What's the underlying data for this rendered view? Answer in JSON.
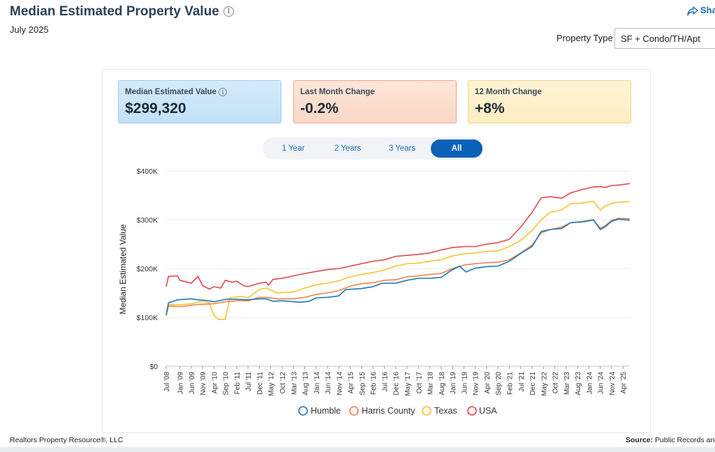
{
  "header": {
    "title": "Median Estimated Property Value",
    "subtitle": "July 2025",
    "share_label": "Sha",
    "property_type_label": "Property Type",
    "property_type_value": "SF + Condo/TH/Apt"
  },
  "cards": [
    {
      "label": "Median Estimated Value",
      "value": "$299,320",
      "has_info": true
    },
    {
      "label": "Last Month Change",
      "value": "-0.2%"
    },
    {
      "label": "12 Month Change",
      "value": "+8%"
    }
  ],
  "tabs": [
    "1 Year",
    "2 Years",
    "3 Years",
    "All"
  ],
  "active_tab": "All",
  "colors": {
    "Humble": "#1f77b4",
    "Harris County": "#f0804b",
    "Texas": "#f4c430",
    "USA": "#e0474c",
    "accent": "#0b61b8"
  },
  "chart_data": {
    "type": "line",
    "ylabel": "Median Estimated Value",
    "xlabel": "",
    "ylim": [
      0,
      400000
    ],
    "y_ticks": [
      "$0",
      "$100K",
      "$200K",
      "$300K",
      "$400K"
    ],
    "x_tick_labels": [
      "Jul '08",
      "Jan '09",
      "Jun '09",
      "Nov '09",
      "Apr '10",
      "Sep '10",
      "Feb '11",
      "Jul '11",
      "Dec '11",
      "May '12",
      "Oct '12",
      "Mar '13",
      "Aug '13",
      "Jan '14",
      "Jun '14",
      "Nov '14",
      "Apr '15",
      "Sep '15",
      "Feb '16",
      "Jul '16",
      "Dec '16",
      "May '17",
      "Oct '17",
      "Mar '18",
      "Aug '18",
      "Jan '19",
      "Jun '19",
      "Nov '19",
      "Apr '20",
      "Sep '20",
      "Feb '21",
      "Jul '21",
      "Dec '21",
      "May '22",
      "Oct '22",
      "Mar '23",
      "Aug '23",
      "Jan '24",
      "Jun '24",
      "Nov '24",
      "Apr '25"
    ],
    "x_start": "2008-07",
    "x_end": "2025-07",
    "legend_position": "bottom",
    "series": [
      {
        "name": "Humble",
        "points": [
          [
            "2008-07",
            105000
          ],
          [
            "2008-08",
            130000
          ],
          [
            "2008-12",
            136000
          ],
          [
            "2009-06",
            138000
          ],
          [
            "2009-09",
            136000
          ],
          [
            "2009-12",
            135000
          ],
          [
            "2010-04",
            132000
          ],
          [
            "2010-09",
            137000
          ],
          [
            "2011-02",
            137000
          ],
          [
            "2011-07",
            136000
          ],
          [
            "2011-12",
            138000
          ],
          [
            "2012-03",
            138000
          ],
          [
            "2012-06",
            133000
          ],
          [
            "2012-10",
            134000
          ],
          [
            "2013-06",
            131000
          ],
          [
            "2013-10",
            133000
          ],
          [
            "2014-01",
            140000
          ],
          [
            "2014-06",
            141000
          ],
          [
            "2014-11",
            144000
          ],
          [
            "2015-02",
            157000
          ],
          [
            "2015-09",
            159000
          ],
          [
            "2016-02",
            163000
          ],
          [
            "2016-06",
            170000
          ],
          [
            "2016-12",
            170000
          ],
          [
            "2017-05",
            176000
          ],
          [
            "2017-10",
            180000
          ],
          [
            "2018-03",
            180000
          ],
          [
            "2018-08",
            182000
          ],
          [
            "2018-12",
            195000
          ],
          [
            "2019-04",
            205000
          ],
          [
            "2019-07",
            193000
          ],
          [
            "2019-11",
            201000
          ],
          [
            "2020-04",
            204000
          ],
          [
            "2020-09",
            205000
          ],
          [
            "2021-02",
            215000
          ],
          [
            "2021-07",
            231000
          ],
          [
            "2021-12",
            245000
          ],
          [
            "2022-04",
            276000
          ],
          [
            "2022-08",
            280000
          ],
          [
            "2023-01",
            282000
          ],
          [
            "2023-05",
            294000
          ],
          [
            "2023-10",
            296000
          ],
          [
            "2024-03",
            300000
          ],
          [
            "2024-06",
            280000
          ],
          [
            "2024-08",
            285000
          ],
          [
            "2024-11",
            297000
          ],
          [
            "2025-02",
            301000
          ],
          [
            "2025-07",
            299000
          ]
        ]
      },
      {
        "name": "Harris County",
        "points": [
          [
            "2008-07",
            105000
          ],
          [
            "2008-08",
            123000
          ],
          [
            "2009-02",
            122000
          ],
          [
            "2009-06",
            125000
          ],
          [
            "2009-11",
            127000
          ],
          [
            "2010-04",
            128000
          ],
          [
            "2010-09",
            132000
          ],
          [
            "2011-02",
            134000
          ],
          [
            "2011-07",
            134000
          ],
          [
            "2011-12",
            141000
          ],
          [
            "2012-03",
            141000
          ],
          [
            "2012-08",
            138000
          ],
          [
            "2013-03",
            138000
          ],
          [
            "2013-08",
            141000
          ],
          [
            "2014-01",
            147000
          ],
          [
            "2014-06",
            150000
          ],
          [
            "2014-11",
            155000
          ],
          [
            "2015-04",
            164000
          ],
          [
            "2015-09",
            169000
          ],
          [
            "2016-02",
            171000
          ],
          [
            "2016-07",
            176000
          ],
          [
            "2016-12",
            177000
          ],
          [
            "2017-05",
            183000
          ],
          [
            "2017-10",
            185000
          ],
          [
            "2018-03",
            188000
          ],
          [
            "2018-08",
            190000
          ],
          [
            "2019-01",
            200000
          ],
          [
            "2019-06",
            207000
          ],
          [
            "2019-11",
            210000
          ],
          [
            "2020-04",
            212000
          ],
          [
            "2020-09",
            213000
          ],
          [
            "2021-02",
            218000
          ],
          [
            "2021-07",
            232000
          ],
          [
            "2021-12",
            248000
          ],
          [
            "2022-04",
            273000
          ],
          [
            "2022-08",
            280000
          ],
          [
            "2023-01",
            285000
          ],
          [
            "2023-05",
            294000
          ],
          [
            "2023-10",
            295000
          ],
          [
            "2024-03",
            299000
          ],
          [
            "2024-06",
            283000
          ],
          [
            "2024-08",
            287000
          ],
          [
            "2024-11",
            299000
          ],
          [
            "2025-02",
            303000
          ],
          [
            "2025-07",
            302000
          ]
        ]
      },
      {
        "name": "Texas",
        "points": [
          [
            "2008-07",
            103000
          ],
          [
            "2008-08",
            126000
          ],
          [
            "2009-02",
            126000
          ],
          [
            "2009-06",
            128000
          ],
          [
            "2009-11",
            133000
          ],
          [
            "2010-02",
            130000
          ],
          [
            "2010-04",
            104000
          ],
          [
            "2010-06",
            96000
          ],
          [
            "2010-09",
            96000
          ],
          [
            "2010-11",
            140000
          ],
          [
            "2011-04",
            143000
          ],
          [
            "2011-07",
            140000
          ],
          [
            "2011-12",
            157000
          ],
          [
            "2012-03",
            160000
          ],
          [
            "2012-08",
            150000
          ],
          [
            "2013-03",
            152000
          ],
          [
            "2013-08",
            160000
          ],
          [
            "2014-01",
            167000
          ],
          [
            "2014-06",
            170000
          ],
          [
            "2014-11",
            175000
          ],
          [
            "2015-04",
            183000
          ],
          [
            "2015-09",
            188000
          ],
          [
            "2016-02",
            192000
          ],
          [
            "2016-07",
            197000
          ],
          [
            "2016-12",
            205000
          ],
          [
            "2017-05",
            210000
          ],
          [
            "2017-10",
            211000
          ],
          [
            "2018-03",
            215000
          ],
          [
            "2018-08",
            218000
          ],
          [
            "2019-01",
            226000
          ],
          [
            "2019-06",
            230000
          ],
          [
            "2019-11",
            232000
          ],
          [
            "2020-04",
            235000
          ],
          [
            "2020-09",
            236000
          ],
          [
            "2021-02",
            245000
          ],
          [
            "2021-07",
            258000
          ],
          [
            "2021-12",
            278000
          ],
          [
            "2022-04",
            300000
          ],
          [
            "2022-08",
            315000
          ],
          [
            "2023-01",
            320000
          ],
          [
            "2023-05",
            333000
          ],
          [
            "2023-10",
            334000
          ],
          [
            "2024-03",
            338000
          ],
          [
            "2024-06",
            320000
          ],
          [
            "2024-08",
            328000
          ],
          [
            "2024-11",
            333000
          ],
          [
            "2025-02",
            336000
          ],
          [
            "2025-07",
            337000
          ]
        ]
      },
      {
        "name": "USA",
        "points": [
          [
            "2008-07",
            163000
          ],
          [
            "2008-08",
            184000
          ],
          [
            "2008-12",
            185000
          ],
          [
            "2009-01",
            176000
          ],
          [
            "2009-06",
            170000
          ],
          [
            "2009-09",
            184000
          ],
          [
            "2009-11",
            165000
          ],
          [
            "2010-02",
            158000
          ],
          [
            "2010-04",
            163000
          ],
          [
            "2010-07",
            160000
          ],
          [
            "2010-09",
            176000
          ],
          [
            "2010-12",
            172000
          ],
          [
            "2011-02",
            174000
          ],
          [
            "2011-05",
            165000
          ],
          [
            "2011-07",
            163000
          ],
          [
            "2011-12",
            170000
          ],
          [
            "2012-03",
            172000
          ],
          [
            "2012-04",
            166000
          ],
          [
            "2012-06",
            178000
          ],
          [
            "2012-10",
            180000
          ],
          [
            "2013-06",
            188000
          ],
          [
            "2014-01",
            194000
          ],
          [
            "2014-06",
            198000
          ],
          [
            "2014-11",
            200000
          ],
          [
            "2015-04",
            205000
          ],
          [
            "2015-09",
            210000
          ],
          [
            "2016-02",
            215000
          ],
          [
            "2016-07",
            218000
          ],
          [
            "2016-12",
            225000
          ],
          [
            "2017-05",
            227000
          ],
          [
            "2017-10",
            229000
          ],
          [
            "2018-03",
            232000
          ],
          [
            "2018-08",
            238000
          ],
          [
            "2019-01",
            243000
          ],
          [
            "2019-06",
            245000
          ],
          [
            "2019-11",
            245000
          ],
          [
            "2020-04",
            250000
          ],
          [
            "2020-09",
            253000
          ],
          [
            "2021-02",
            260000
          ],
          [
            "2021-07",
            285000
          ],
          [
            "2021-12",
            315000
          ],
          [
            "2022-04",
            345000
          ],
          [
            "2022-08",
            347000
          ],
          [
            "2023-01",
            344000
          ],
          [
            "2023-05",
            355000
          ],
          [
            "2023-10",
            362000
          ],
          [
            "2024-03",
            367000
          ],
          [
            "2024-06",
            368000
          ],
          [
            "2024-08",
            366000
          ],
          [
            "2024-11",
            370000
          ],
          [
            "2025-02",
            371000
          ],
          [
            "2025-07",
            374000
          ]
        ]
      }
    ]
  },
  "footer": {
    "left": "Realtors Property Resource®, LLC",
    "right_bold": "Source:",
    "right_text": " Public Records and"
  }
}
